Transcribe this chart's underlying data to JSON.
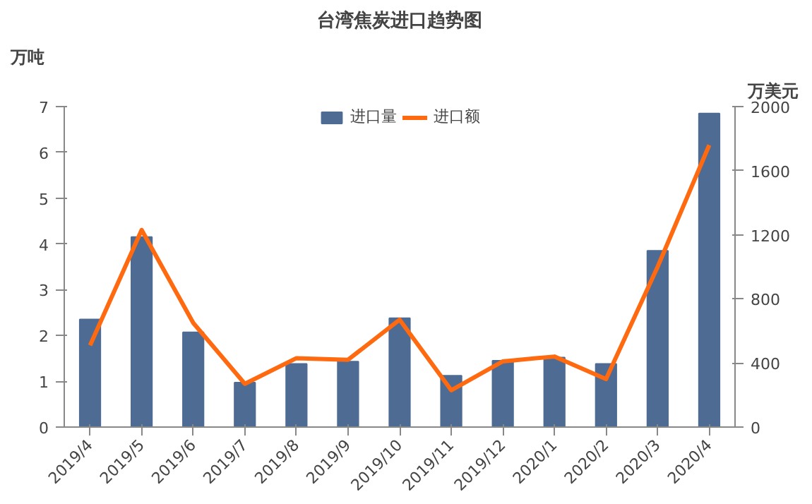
{
  "chart_data": {
    "type": "bar",
    "title": "台湾焦炭进口趋势图",
    "ylabel": "万吨",
    "y2label": "万美元",
    "categories": [
      "2019/4",
      "2019/5",
      "2019/6",
      "2019/7",
      "2019/8",
      "2019/9",
      "2019/10",
      "2019/11",
      "2019/12",
      "2020/1",
      "2020/2",
      "2020/3",
      "2020/4"
    ],
    "series": [
      {
        "name": "进口量",
        "type": "bar",
        "color": "#4e6b94",
        "values": [
          2.35,
          4.15,
          2.07,
          0.97,
          1.38,
          1.43,
          2.38,
          1.12,
          1.45,
          1.52,
          1.38,
          3.85,
          6.85
        ]
      },
      {
        "name": "进口额",
        "type": "line",
        "axis": "y2",
        "color": "#ff6a10",
        "values": [
          510,
          1230,
          650,
          270,
          430,
          420,
          670,
          230,
          410,
          440,
          300,
          1000,
          1760
        ]
      }
    ],
    "ylim": [
      0,
      7
    ],
    "yticks": [
      0,
      1,
      2,
      3,
      4,
      5,
      6,
      7
    ],
    "y2lim": [
      0,
      2000
    ],
    "y2ticks": [
      0,
      400,
      800,
      1200,
      1600,
      2000
    ],
    "grid": false,
    "legend": "top",
    "marker": "none",
    "line_style": "solid"
  }
}
